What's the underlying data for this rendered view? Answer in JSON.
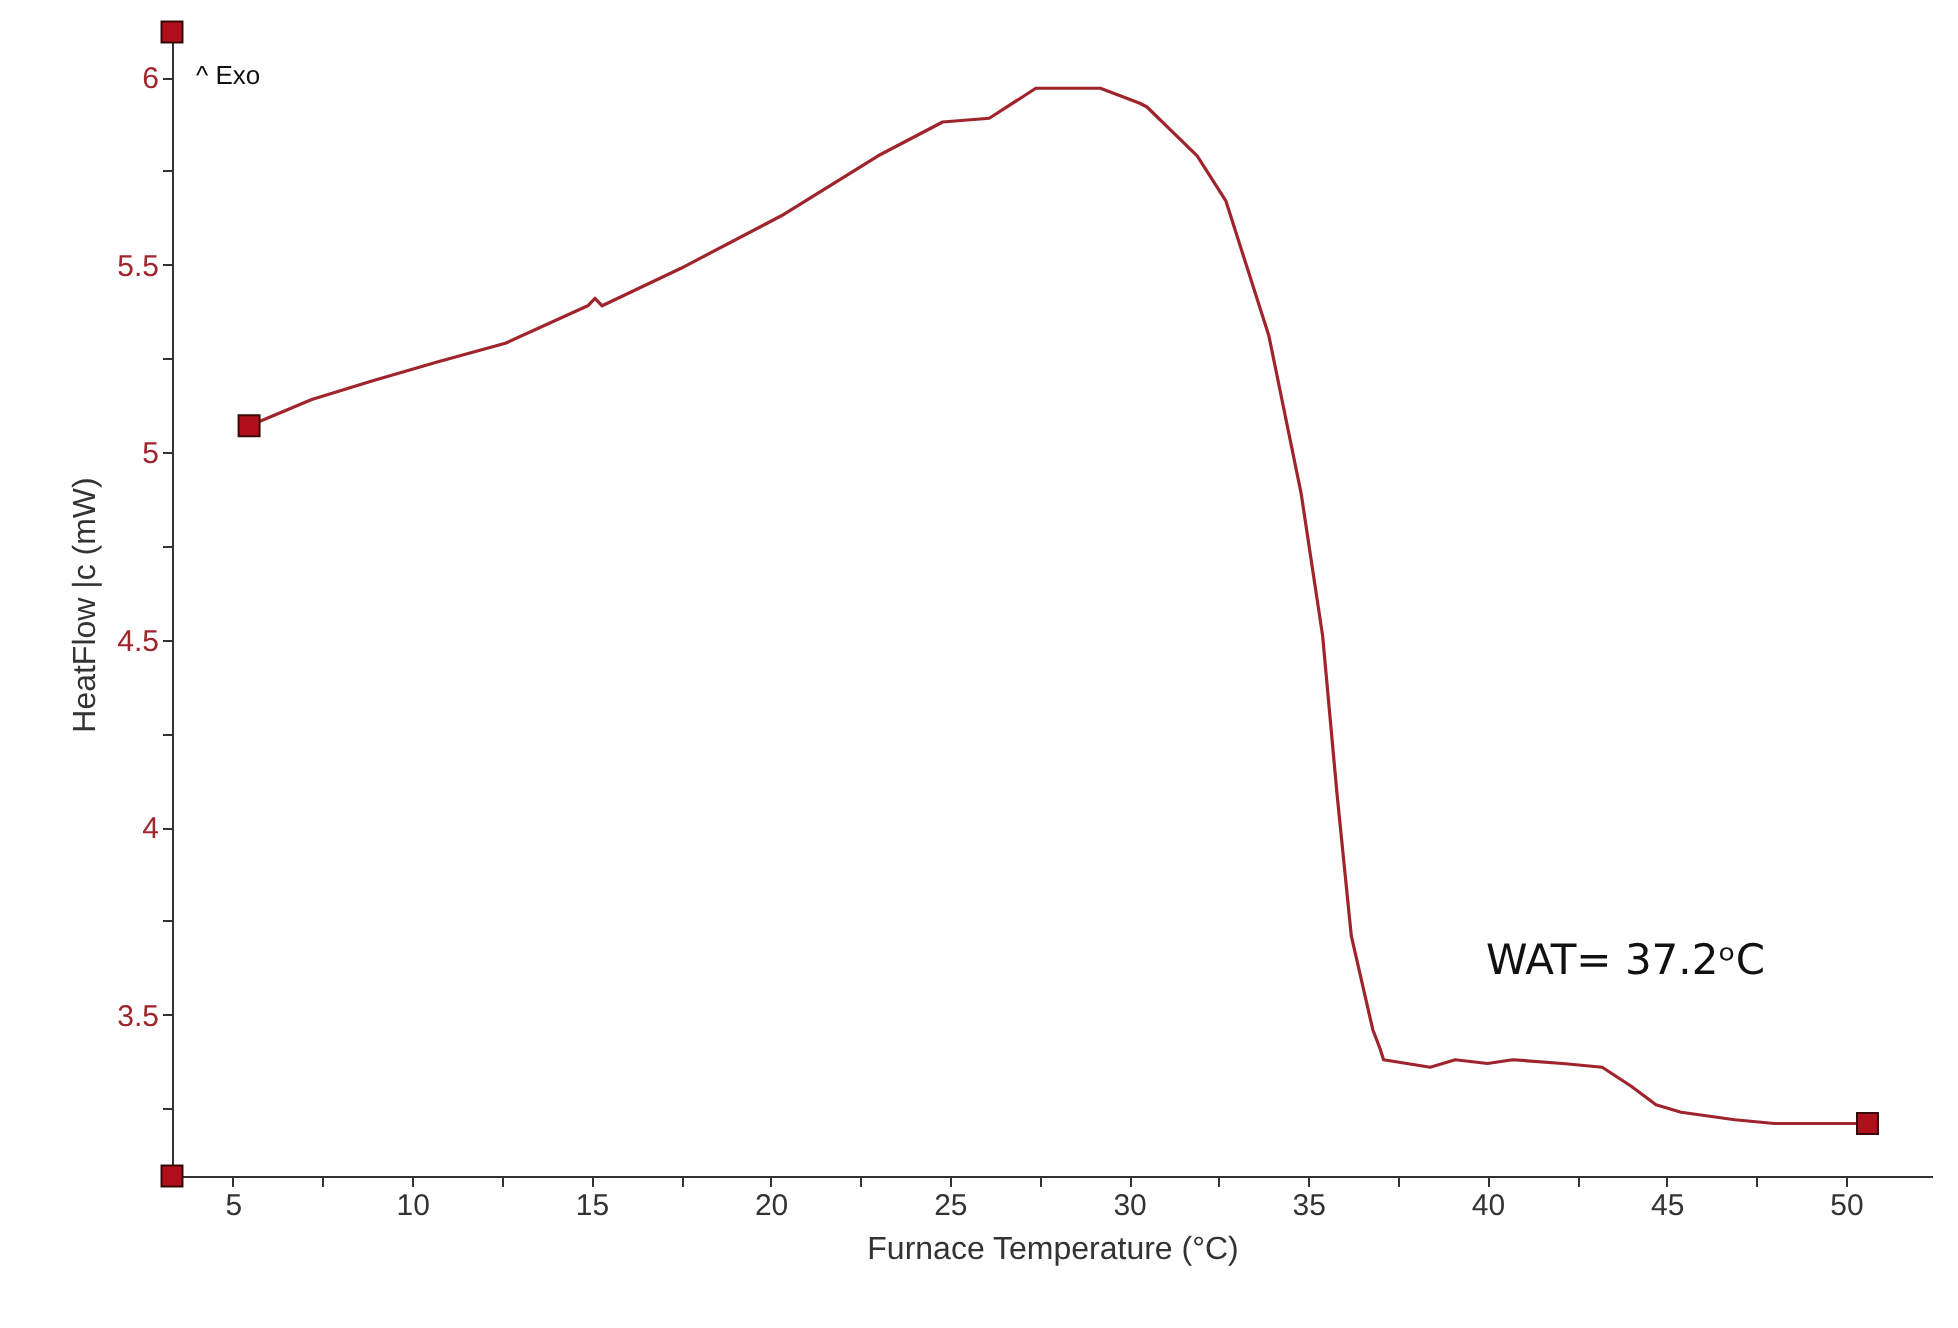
{
  "chart_data": {
    "type": "line",
    "xlabel": "Furnace Temperature (°C)",
    "ylabel": "HeatFlow |c (mW)",
    "xlim": [
      3.3,
      52.4
    ],
    "ylim": [
      3.07,
      6.12
    ],
    "xticks": [
      5,
      {
        "value": 7.5,
        "label": null
      },
      10,
      {
        "value": 12.5,
        "label": null
      },
      15,
      {
        "value": 17.5,
        "label": null
      },
      20,
      {
        "value": 22.5,
        "label": null
      },
      25,
      {
        "value": 27.5,
        "label": null
      },
      30,
      {
        "value": 32.5,
        "label": null
      },
      35,
      {
        "value": 37.5,
        "label": null
      },
      40,
      {
        "value": 42.5,
        "label": null
      },
      45,
      {
        "value": 47.5,
        "label": null
      },
      50
    ],
    "yticks": [
      {
        "value": 3.25,
        "label": null
      },
      3.5,
      {
        "value": 3.75,
        "label": null
      },
      4,
      {
        "value": 4.25,
        "label": null
      },
      4.5,
      {
        "value": 4.75,
        "label": null
      },
      5,
      {
        "value": 5.25,
        "label": null
      },
      5.5,
      {
        "value": 5.75,
        "label": null
      },
      6
    ],
    "grid": false,
    "annotations": [
      "^  Exo",
      "WAT= 37.2ᵒC"
    ],
    "series": [
      {
        "color": "#a0242c",
        "marker": "none",
        "x": [
          5.45,
          7.2,
          8.9,
          10.7,
          12.6,
          14.9,
          15.1,
          15.3,
          17.5,
          20.3,
          23.0,
          24.8,
          26.1,
          27.4,
          29.2,
          30.3,
          30.5,
          31.9,
          32.7,
          33.9,
          34.8,
          35.4,
          35.8,
          36.2,
          36.8,
          37.0,
          37.1,
          38.4,
          39.1,
          40.0,
          40.7,
          42.1,
          43.2,
          44.0,
          44.7,
          45.4,
          46.9,
          48.0,
          50.6
        ],
        "values": [
          5.07,
          5.14,
          5.19,
          5.24,
          5.29,
          5.39,
          5.41,
          5.39,
          5.49,
          5.63,
          5.79,
          5.88,
          5.89,
          5.97,
          5.97,
          5.93,
          5.92,
          5.79,
          5.67,
          5.31,
          4.89,
          4.51,
          4.09,
          3.71,
          3.46,
          3.41,
          3.38,
          3.36,
          3.38,
          3.37,
          3.38,
          3.37,
          3.36,
          3.31,
          3.26,
          3.24,
          3.22,
          3.21,
          3.21
        ]
      },
      {
        "type": "scatter",
        "color": "#b0101c",
        "marker": "square",
        "x": [
          3.3,
          3.3,
          5.45,
          50.6
        ],
        "values": [
          6.12,
          3.07,
          5.07,
          3.21
        ]
      }
    ]
  }
}
